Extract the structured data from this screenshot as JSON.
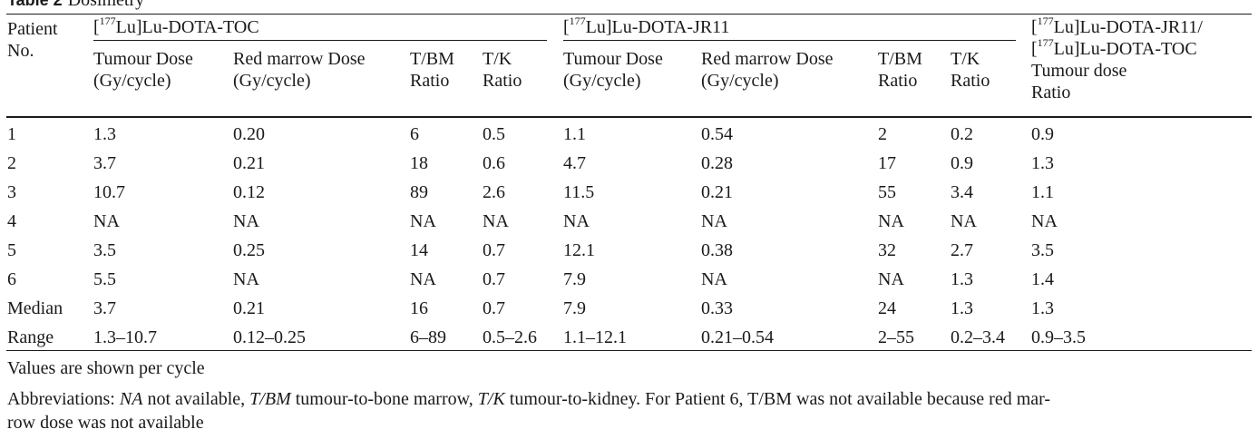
{
  "caption": {
    "label": "Table 2",
    "title": "Dosimetry"
  },
  "header": {
    "patient_line1": "Patient",
    "patient_line2": "No.",
    "group_toc": {
      "iso": "177",
      "rest": "Lu]Lu-DOTA-TOC"
    },
    "group_jr11": {
      "iso": "177",
      "rest": "Lu]Lu-DOTA-JR11"
    },
    "ratio_col": {
      "line1_iso": "177",
      "line1_rest": "Lu]Lu-DOTA-JR11/",
      "line2_iso": "177",
      "line2_rest": "Lu]Lu-DOTA-TOC",
      "line3": "Tumour dose",
      "line4": "Ratio"
    },
    "sub": {
      "tumour_dose_1": "Tumour Dose",
      "tumour_dose_2": "(Gy/cycle)",
      "rm_dose_1": "Red marrow Dose",
      "rm_dose_2": "(Gy/cycle)",
      "tbm_1": "T/BM",
      "tbm_2": "Ratio",
      "tk_1": "T/K",
      "tk_2": "Ratio"
    }
  },
  "rows": [
    [
      "1",
      "1.3",
      "0.20",
      "6",
      "0.5",
      "1.1",
      "0.54",
      "2",
      "0.2",
      "0.9"
    ],
    [
      "2",
      "3.7",
      "0.21",
      "18",
      "0.6",
      "4.7",
      "0.28",
      "17",
      "0.9",
      "1.3"
    ],
    [
      "3",
      "10.7",
      "0.12",
      "89",
      "2.6",
      "11.5",
      "0.21",
      "55",
      "3.4",
      "1.1"
    ],
    [
      "4",
      "NA",
      "NA",
      "NA",
      "NA",
      "NA",
      "NA",
      "NA",
      "NA",
      "NA"
    ],
    [
      "5",
      "3.5",
      "0.25",
      "14",
      "0.7",
      "12.1",
      "0.38",
      "32",
      "2.7",
      "3.5"
    ],
    [
      "6",
      "5.5",
      "NA",
      "NA",
      "0.7",
      "7.9",
      "NA",
      "NA",
      "1.3",
      "1.4"
    ],
    [
      "Median",
      "3.7",
      "0.21",
      "16",
      "0.7",
      "7.9",
      "0.33",
      "24",
      "1.3",
      "1.3"
    ],
    [
      "Range",
      "1.3–10.7",
      "0.12–0.25",
      "6–89",
      "0.5–2.6",
      "1.1–12.1",
      "0.21–0.54",
      "2–55",
      "0.2–3.4",
      "0.9–3.5"
    ]
  ],
  "notes": {
    "line1": "Values are shown per cycle",
    "abbr_prefix": "Abbreviations: ",
    "abbr_na": "NA",
    "abbr_na_text": " not available, ",
    "abbr_tbm": "T/BM",
    "abbr_tbm_text": " tumour-to-bone marrow, ",
    "abbr_tk": "T/K",
    "abbr_tk_text": " tumour-to-kidney. For Patient 6, T/BM was not available because red mar-",
    "abbr_line2": "row dose was not available"
  }
}
